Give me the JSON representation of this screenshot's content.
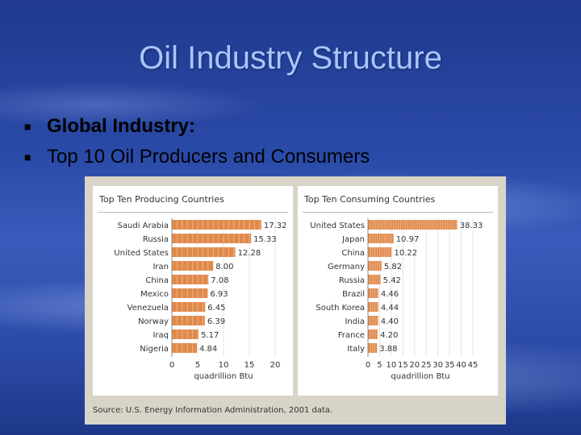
{
  "slide": {
    "title": "Oil Industry Structure",
    "bullets": [
      "Global Industry:",
      "Top 10 Oil Producers and Consumers"
    ],
    "bullet_icon": "square-bullet-icon"
  },
  "figure": {
    "source": "Source: U.S. Energy Information Administration, 2001 data."
  },
  "chart_data": [
    {
      "type": "bar",
      "orientation": "horizontal",
      "title": "Top Ten Producing Countries",
      "categories": [
        "Saudi Arabia",
        "Russia",
        "United States",
        "Iran",
        "China",
        "Mexico",
        "Venezuela",
        "Norway",
        "Iraq",
        "Nigeria"
      ],
      "values": [
        17.32,
        15.33,
        12.28,
        8.0,
        7.08,
        6.93,
        6.45,
        6.39,
        5.17,
        4.84
      ],
      "value_labels": [
        "17.32",
        "15.33",
        "12.28",
        "8.00",
        "7.08",
        "6.93",
        "6.45",
        "6.39",
        "5.17",
        "4.84"
      ],
      "xlabel": "quadrillion Btu",
      "xlim": [
        0,
        20
      ],
      "xticks": [
        0,
        5,
        10,
        15,
        20
      ],
      "bar_color": "#e08a4a"
    },
    {
      "type": "bar",
      "orientation": "horizontal",
      "title": "Top Ten Consuming Countries",
      "categories": [
        "United States",
        "Japan",
        "China",
        "Germany",
        "Russia",
        "Brazil",
        "South Korea",
        "India",
        "France",
        "Italy"
      ],
      "values": [
        38.33,
        10.97,
        10.22,
        5.82,
        5.42,
        4.46,
        4.44,
        4.4,
        4.2,
        3.88
      ],
      "value_labels": [
        "38.33",
        "10.97",
        "10.22",
        "5.82",
        "5.42",
        "4.46",
        "4.44",
        "4.40",
        "4.20",
        "3.88"
      ],
      "xlabel": "quadrillion Btu",
      "xlim": [
        0,
        45
      ],
      "xticks": [
        0,
        5,
        10,
        15,
        20,
        25,
        30,
        35,
        40,
        45
      ],
      "bar_color": "#e08a4a"
    }
  ]
}
